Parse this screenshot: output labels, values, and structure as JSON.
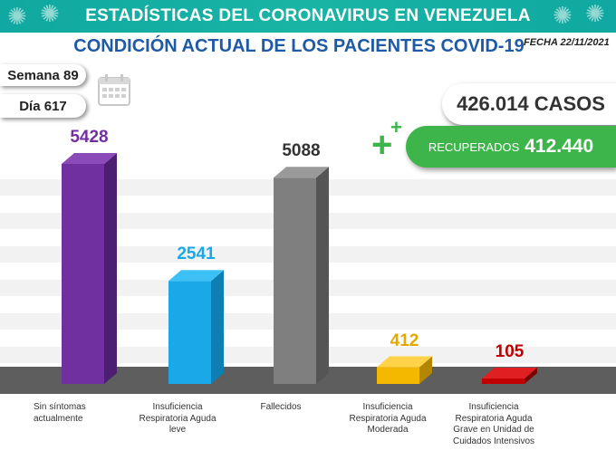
{
  "header": {
    "title": "ESTADÍSTICAS DEL CORONAVIRUS EN VENEZUELA",
    "subtitle": "CONDICIÓN ACTUAL DE LOS PACIENTES COVID-19",
    "fecha": "FECHA 22/11/2021"
  },
  "semana_label": "Semana 89",
  "dia_label": "Día 617",
  "casos_label": "426.014 CASOS",
  "recuperados": {
    "label": "RECUPERADOS",
    "value": "412.440"
  },
  "colors": {
    "banner": "#10a8a0",
    "subtitle": "#1f5aa6",
    "recuperados": "#3db54a",
    "floor": "#5e5e5e"
  },
  "chart_data": {
    "type": "bar",
    "title": "",
    "xlabel": "",
    "ylabel": "",
    "ylim": [
      0,
      5800
    ],
    "categories": [
      "Sin síntomas actualmente",
      "Insuficiencia Respiratoria Aguda leve",
      "Fallecidos",
      "Insuficiencia Respiratoria Aguda Moderada",
      "Insuficiencia Respiratoria Aguda Grave en Unidad de Cuidados Intensivos"
    ],
    "values": [
      5428,
      2541,
      5088,
      412,
      105
    ],
    "value_labels": [
      "5428",
      "2541",
      "5088",
      "412",
      "105"
    ],
    "bar_colors": [
      "#7030a0",
      "#1aa9e8",
      "#7f7f7f",
      "#f5b800",
      "#c00000"
    ],
    "bar_top_colors": [
      "#8a4bb8",
      "#3cc0f5",
      "#9a9a9a",
      "#ffd24a",
      "#e02020"
    ],
    "bar_side_colors": [
      "#4d1f70",
      "#0d7fb3",
      "#555555",
      "#b38600",
      "#7a0000"
    ],
    "label_colors": [
      "#7030a0",
      "#1aa9e8",
      "#333333",
      "#e6a800",
      "#c00000"
    ]
  }
}
